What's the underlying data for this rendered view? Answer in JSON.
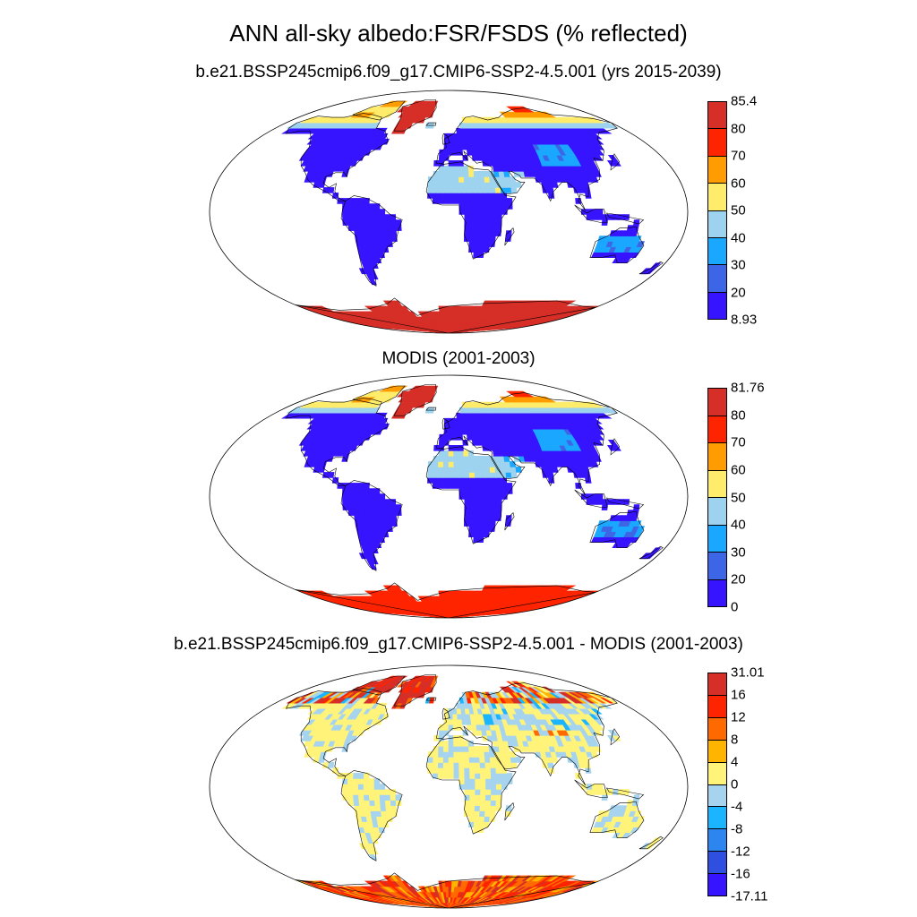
{
  "title": "ANN all-sky albedo:FSR/FSDS (% reflected)",
  "panels": [
    {
      "title": "b.e21.BSSP245cmip6.f09_g17.CMIP6-SSP2-4.5.001 (yrs 2015-2039)",
      "scheme": "abs",
      "colorbar": {
        "labels": [
          "85.4",
          "80",
          "70",
          "60",
          "50",
          "40",
          "30",
          "20",
          "8.93"
        ],
        "colors": [
          "#d62f27",
          "#ff2400",
          "#ff9d00",
          "#ffec6a",
          "#9dd3ef",
          "#1aa7ff",
          "#3d66e6",
          "#3714ff"
        ]
      }
    },
    {
      "title": "MODIS (2001-2003)",
      "scheme": "abs",
      "colorbar": {
        "labels": [
          "81.76",
          "80",
          "70",
          "60",
          "50",
          "40",
          "30",
          "20",
          "0"
        ],
        "colors": [
          "#d62f27",
          "#ff2400",
          "#ff9d00",
          "#ffec6a",
          "#9dd3ef",
          "#1aa7ff",
          "#3d66e6",
          "#3714ff"
        ]
      }
    },
    {
      "title": "b.e21.BSSP245cmip6.f09_g17.CMIP6-SSP2-4.5.001 - MODIS (2001-2003)",
      "scheme": "diff",
      "colorbar": {
        "labels": [
          "31.01",
          "16",
          "12",
          "8",
          "4",
          "0",
          "-4",
          "-8",
          "-12",
          "-16",
          "-17.11"
        ],
        "colors": [
          "#d62f27",
          "#ff2400",
          "#ff6a00",
          "#ffb400",
          "#fff37a",
          "#a6d4ef",
          "#1ab4ff",
          "#2d86f0",
          "#2e4fe0",
          "#3714ff"
        ]
      }
    }
  ]
}
